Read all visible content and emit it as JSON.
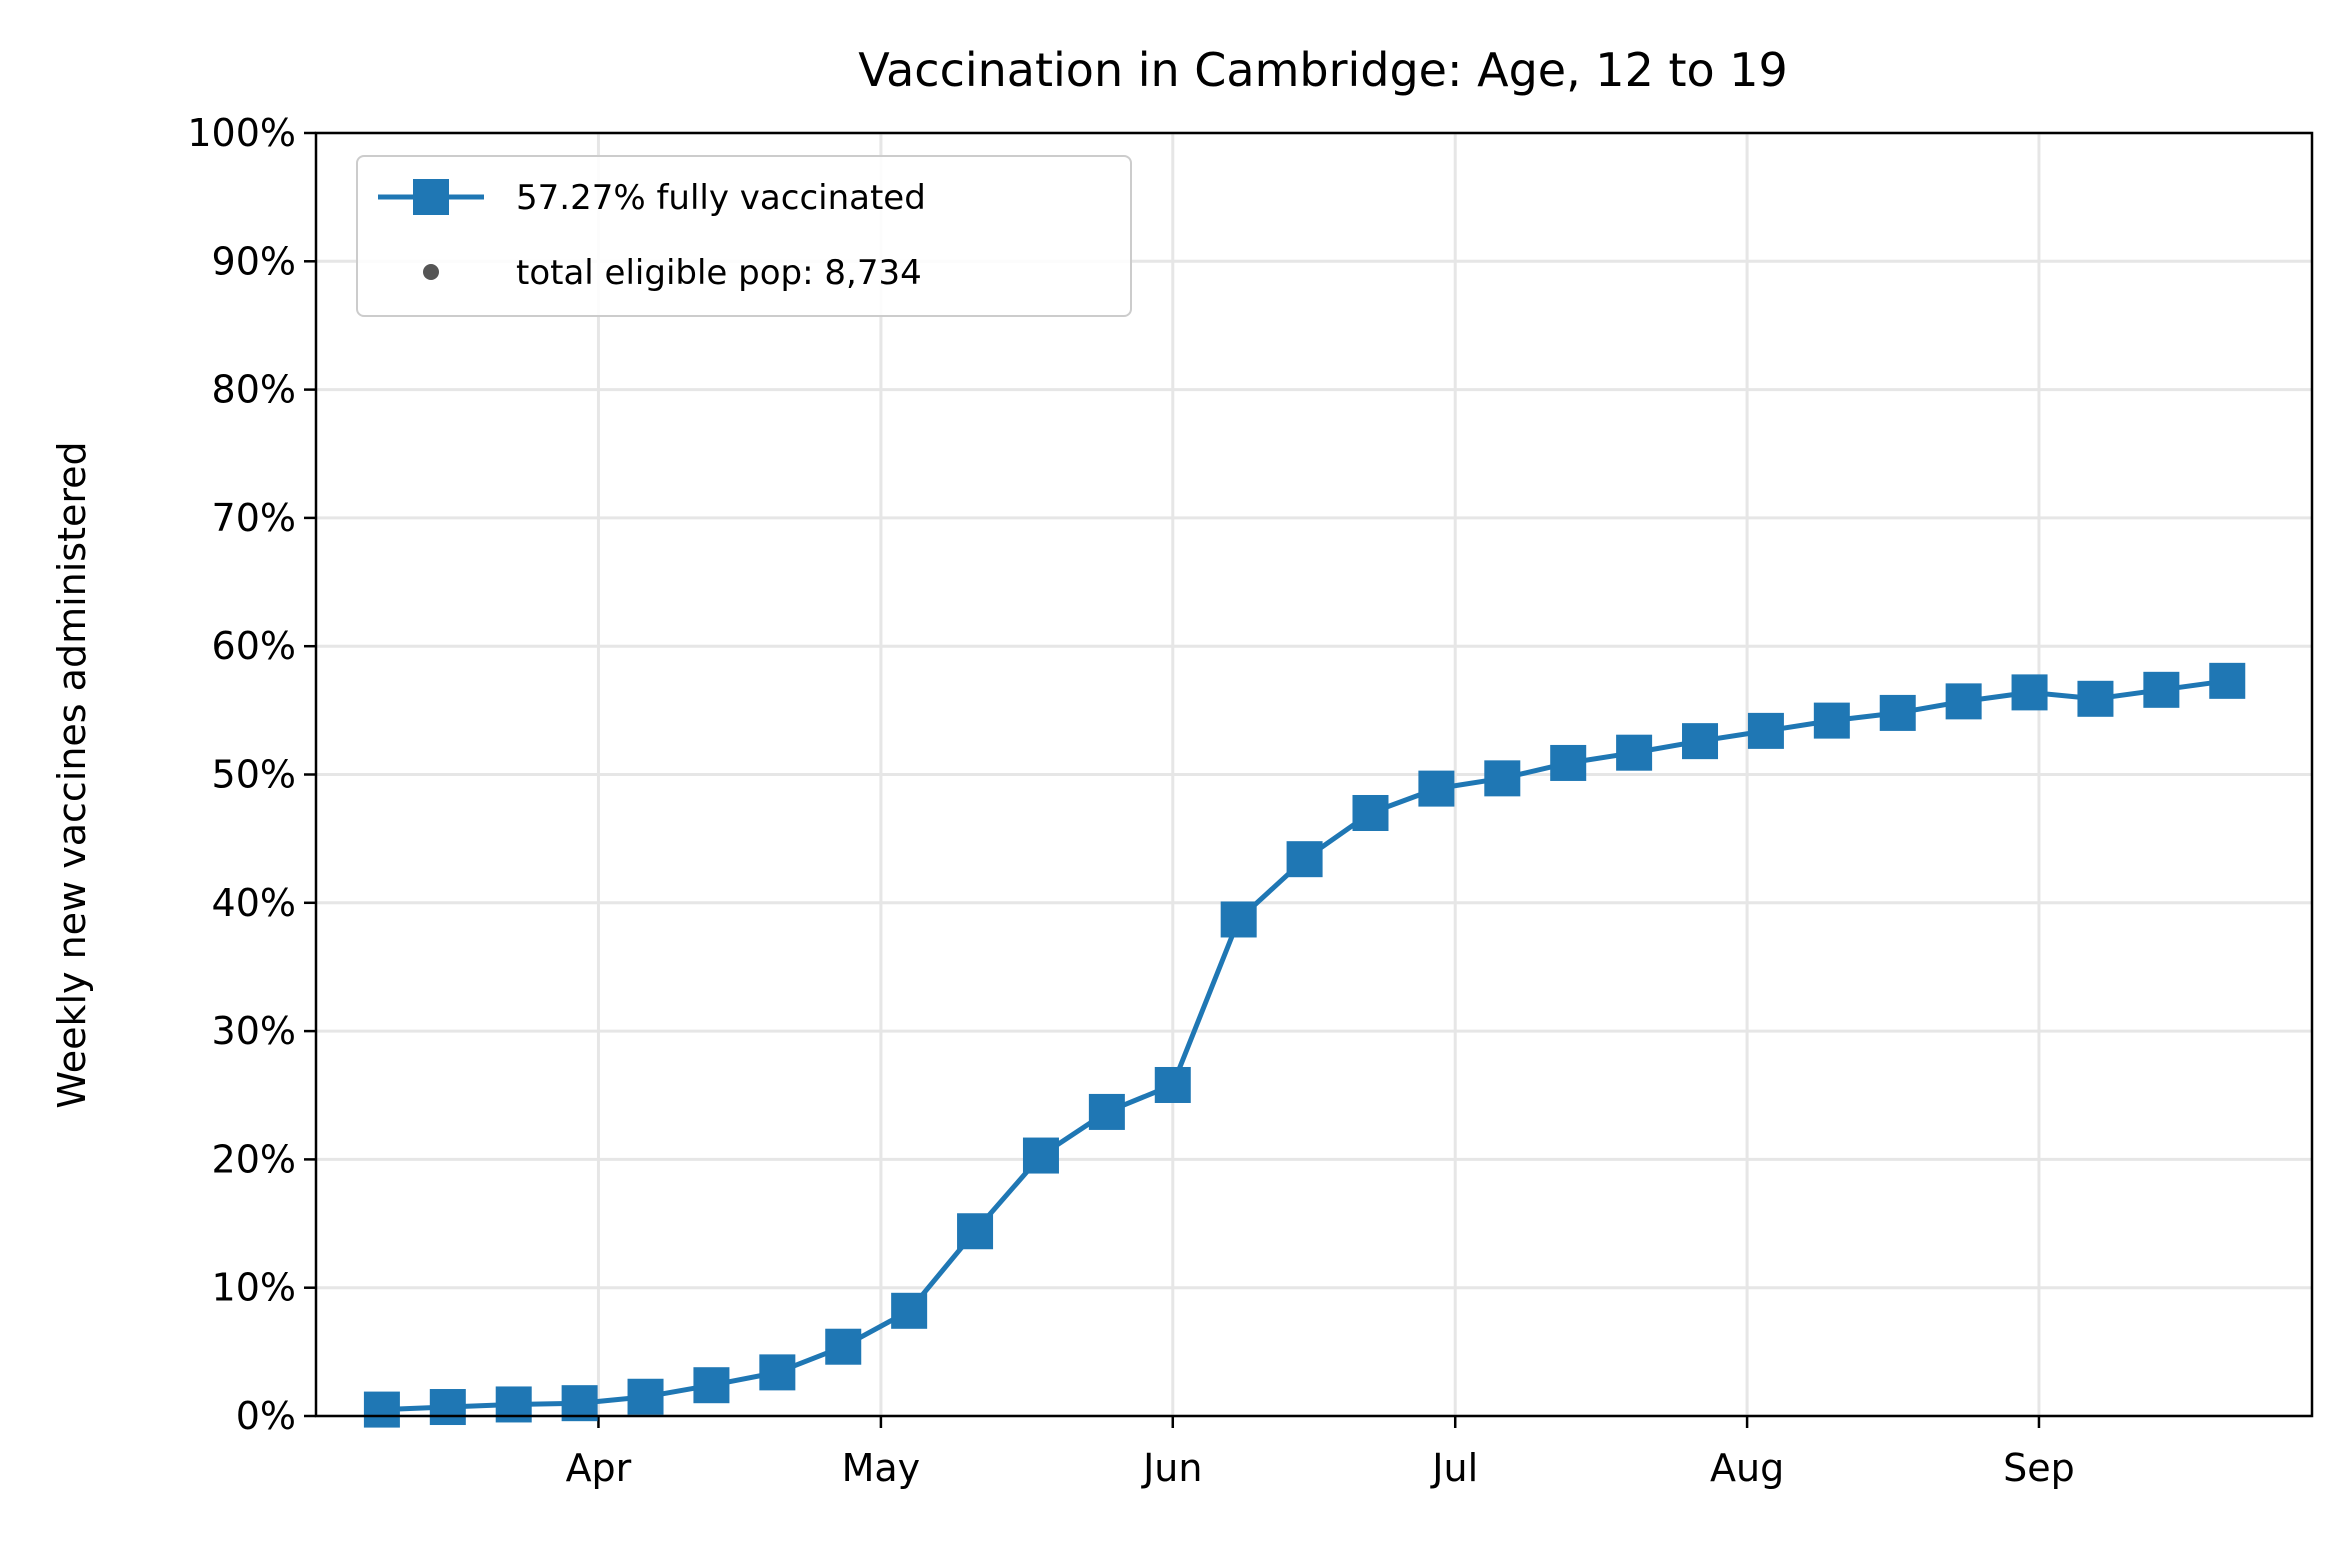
{
  "chart_data": {
    "type": "line",
    "title": "Vaccination in Cambridge: Age, 12 to 19",
    "xlabel": "",
    "ylabel": "Weekly new vaccines administered",
    "x_tick_labels": [
      "Apr",
      "May",
      "Jun",
      "Jul",
      "Aug",
      "Sep"
    ],
    "x_tick_dates": [
      "2021-04-01",
      "2021-05-01",
      "2021-06-01",
      "2021-07-01",
      "2021-08-01",
      "2021-09-01"
    ],
    "xlim": [
      "2021-03-02",
      "2021-09-30"
    ],
    "y_tick_labels": [
      "0%",
      "10%",
      "20%",
      "30%",
      "40%",
      "50%",
      "60%",
      "70%",
      "80%",
      "90%",
      "100%"
    ],
    "ylim": [
      0,
      100
    ],
    "grid": true,
    "legend_position": "top-left",
    "series": [
      {
        "name": "57.27% fully vaccinated",
        "color": "#1f77b4",
        "marker": "square",
        "x": [
          "2021-03-09",
          "2021-03-16",
          "2021-03-23",
          "2021-03-30",
          "2021-04-06",
          "2021-04-13",
          "2021-04-20",
          "2021-04-27",
          "2021-05-04",
          "2021-05-11",
          "2021-05-18",
          "2021-05-25",
          "2021-06-01",
          "2021-06-08",
          "2021-06-15",
          "2021-06-22",
          "2021-06-29",
          "2021-07-06",
          "2021-07-13",
          "2021-07-20",
          "2021-07-27",
          "2021-08-03",
          "2021-08-10",
          "2021-08-17",
          "2021-08-24",
          "2021-08-31",
          "2021-09-07",
          "2021-09-14",
          "2021-09-21"
        ],
        "values": [
          0.5,
          0.7,
          0.9,
          1.0,
          1.5,
          2.4,
          3.4,
          5.4,
          8.2,
          14.4,
          20.3,
          23.7,
          25.8,
          38.7,
          43.4,
          47.0,
          48.9,
          49.7,
          50.9,
          51.7,
          52.6,
          53.4,
          54.2,
          54.8,
          55.7,
          56.4,
          55.9,
          56.6,
          57.3
        ]
      }
    ],
    "legend_entries": [
      {
        "label": "57.27% fully vaccinated",
        "marker": "line-square",
        "color": "#1f77b4"
      },
      {
        "label": "total eligible pop: 8,734",
        "marker": "dot",
        "color": "#555555"
      }
    ]
  }
}
